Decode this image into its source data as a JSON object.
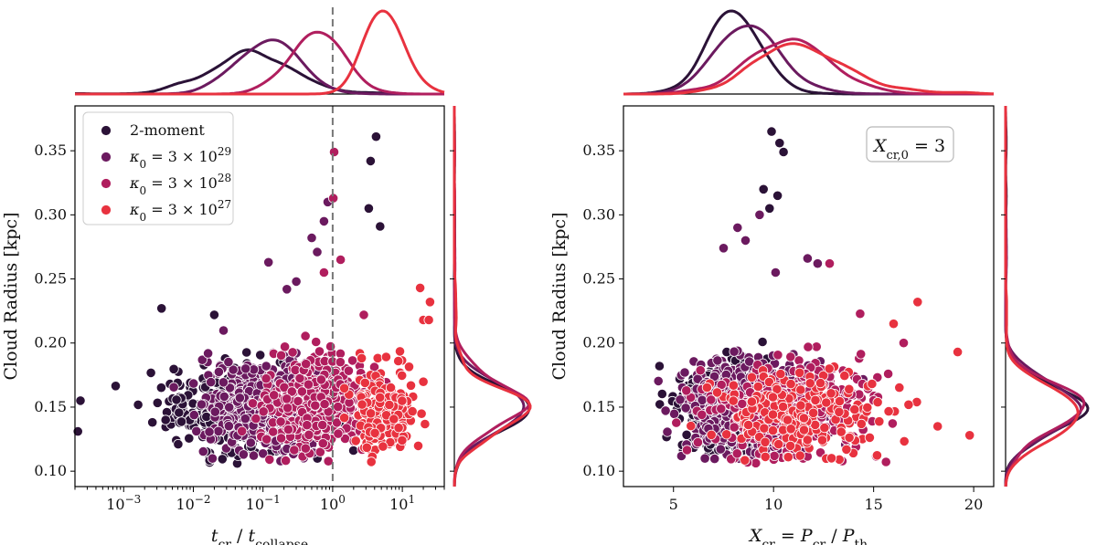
{
  "figure": {
    "colors": {
      "2-moment": "#2b1237",
      "k29": "#6b1a5f",
      "k28": "#b01e5e",
      "k27": "#e8323f"
    }
  },
  "chart_data": [
    {
      "type": "scatter",
      "panel": "left",
      "xlabel": "t_cr / t_collapse",
      "ylabel": "Cloud Radius [kpc]",
      "xscale": "log",
      "xlim": [
        0.0002,
        40
      ],
      "ylim": [
        0.088,
        0.385
      ],
      "x_tick_labels": [
        "10^-3",
        "10^-2",
        "10^-1",
        "10^0",
        "10^1"
      ],
      "y_tick_labels": [
        "0.10",
        "0.15",
        "0.20",
        "0.25",
        "0.30",
        "0.35"
      ],
      "vline": {
        "x": 1,
        "style": "dashed",
        "color": "#777777"
      },
      "legend": {
        "placement": "top-left",
        "entries": [
          {
            "key": "2-moment",
            "label": "2-moment"
          },
          {
            "key": "k29",
            "label": "κ0 = 3 × 10^29"
          },
          {
            "key": "k28",
            "label": "κ0 = 3 × 10^28"
          },
          {
            "key": "k27",
            "label": "κ0 = 3 × 10^27"
          }
        ]
      },
      "series": [
        {
          "key": "2-moment",
          "log10x_mean": -1.2,
          "log10x_sd": 0.55,
          "y_mean": 0.148,
          "y_sd": 0.016,
          "n": 600,
          "outliers": [
            [
              0.00024,
              0.155
            ],
            [
              0.00022,
              0.131
            ],
            [
              0.0035,
              0.227
            ],
            [
              0.02,
              0.222
            ],
            [
              3.5,
              0.342
            ],
            [
              4.2,
              0.361
            ],
            [
              3.3,
              0.305
            ],
            [
              4.8,
              0.291
            ],
            [
              0.004,
              0.14
            ]
          ]
        },
        {
          "key": "k29",
          "log10x_mean": -0.95,
          "log10x_sd": 0.4,
          "y_mean": 0.15,
          "y_sd": 0.017,
          "n": 650,
          "outliers": [
            [
              0.12,
              0.263
            ],
            [
              0.22,
              0.242
            ],
            [
              0.5,
              0.282
            ],
            [
              0.75,
              0.295
            ],
            [
              0.6,
              0.271
            ],
            [
              0.85,
              0.31
            ],
            [
              0.3,
              0.248
            ]
          ]
        },
        {
          "key": "k28",
          "log10x_mean": -0.25,
          "log10x_sd": 0.35,
          "y_mean": 0.152,
          "y_sd": 0.018,
          "n": 420,
          "outliers": [
            [
              1.05,
              0.349
            ],
            [
              1.02,
              0.313
            ],
            [
              1.3,
              0.265
            ],
            [
              0.75,
              0.255
            ],
            [
              2.8,
              0.222
            ]
          ]
        },
        {
          "key": "k27",
          "log10x_mean": 0.75,
          "log10x_sd": 0.22,
          "y_mean": 0.148,
          "y_sd": 0.016,
          "n": 200,
          "outliers": [
            [
              18,
              0.243
            ],
            [
              25,
              0.232
            ],
            [
              20,
              0.218
            ],
            [
              24,
              0.218
            ]
          ]
        }
      ]
    },
    {
      "type": "scatter",
      "panel": "right",
      "xlabel": "X_cr = P_cr / P_th",
      "ylabel": "Cloud Radius [kpc]",
      "xscale": "linear",
      "xlim": [
        2.5,
        21
      ],
      "ylim": [
        0.088,
        0.385
      ],
      "x_tick_labels": [
        "5",
        "10",
        "15",
        "20"
      ],
      "y_tick_labels": [
        "0.10",
        "0.15",
        "0.20",
        "0.25",
        "0.30",
        "0.35"
      ],
      "annotation": {
        "text": "X_cr,0 = 3",
        "placement": "top-right"
      },
      "series": [
        {
          "key": "2-moment",
          "x_mean": 8.0,
          "x_sd": 1.2,
          "y_mean": 0.148,
          "y_sd": 0.016,
          "n": 600,
          "outliers": [
            [
              9.9,
              0.365
            ],
            [
              10.3,
              0.356
            ],
            [
              10.5,
              0.349
            ],
            [
              9.5,
              0.32
            ],
            [
              10.2,
              0.315
            ],
            [
              9.8,
              0.305
            ],
            [
              4.3,
              0.182
            ]
          ]
        },
        {
          "key": "k29",
          "x_mean": 8.8,
          "x_sd": 1.5,
          "y_mean": 0.15,
          "y_sd": 0.017,
          "n": 650,
          "outliers": [
            [
              8.2,
              0.29
            ],
            [
              8.6,
              0.28
            ],
            [
              9.3,
              0.3
            ],
            [
              7.5,
              0.274
            ],
            [
              10.1,
              0.255
            ],
            [
              12.2,
              0.262
            ],
            [
              11.7,
              0.266
            ]
          ]
        },
        {
          "key": "k28",
          "x_mean": 10.5,
          "x_sd": 2.0,
          "y_mean": 0.15,
          "y_sd": 0.017,
          "n": 420,
          "outliers": [
            [
              12.8,
              0.262
            ],
            [
              16.5,
              0.2
            ]
          ]
        },
        {
          "key": "k27",
          "x_mean": 11.5,
          "x_sd": 2.2,
          "y_mean": 0.146,
          "y_sd": 0.016,
          "n": 200,
          "outliers": [
            [
              17.2,
              0.232
            ],
            [
              19.2,
              0.193
            ],
            [
              19.8,
              0.128
            ],
            [
              18.2,
              0.135
            ],
            [
              16.0,
              0.215
            ]
          ]
        }
      ]
    }
  ]
}
